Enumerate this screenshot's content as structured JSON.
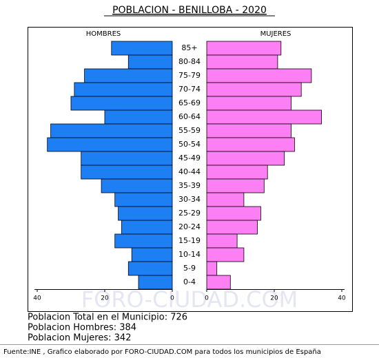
{
  "chart_data": {
    "type": "population_pyramid",
    "title": "POBLACION - BENILLOBA - 2020",
    "categories": [
      "85+",
      "80-84",
      "75-79",
      "70-74",
      "65-69",
      "60-64",
      "55-59",
      "50-54",
      "45-49",
      "40-44",
      "35-39",
      "30-34",
      "25-29",
      "20-24",
      "15-19",
      "10-14",
      "5-9",
      "0-4"
    ],
    "series": [
      {
        "name": "HOMBRES",
        "color": "#1e7ff5",
        "values": [
          18,
          13,
          26,
          29,
          30,
          20,
          36,
          37,
          27,
          27,
          21,
          17,
          16,
          15,
          17,
          12,
          13,
          10
        ]
      },
      {
        "name": "MUJERES",
        "color": "#fc7ff4",
        "values": [
          22,
          21,
          31,
          28,
          25,
          34,
          25,
          26,
          23,
          18,
          17,
          11,
          16,
          15,
          9,
          11,
          3,
          7
        ]
      }
    ],
    "xlim": [
      0,
      40
    ],
    "xticks": [
      0,
      20,
      40
    ],
    "watermark": "FORO-CIUDAD.COM",
    "summary": [
      "Poblacion Total en el Municipio: 726",
      "Poblacion Hombres: 384",
      "Poblacion Mujeres: 342"
    ],
    "source": "Fuente:INE , Grafico elaborado por FORO-CIUDAD.COM para todos los municipios de España"
  }
}
